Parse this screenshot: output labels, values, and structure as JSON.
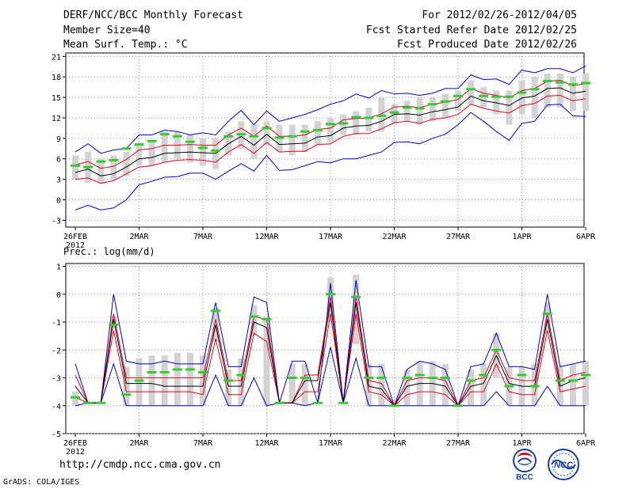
{
  "header": {
    "title": "DERF/NCC/BCC Monthly Forecast",
    "member_size": "Member Size=40",
    "variable": "Mean Surf. Temp.: °C",
    "for_period": "For 2012/02/26-2012/04/05",
    "started_refer": "Fcst Started Refer Date 2012/02/25",
    "produced": "Fcst Produced Date 2012/02/26"
  },
  "footer": {
    "url": "http://cmdp.ncc.cma.gov.cn",
    "grads": "GrADS: COLA/IGES",
    "logo_bcc_text": "BCC",
    "logo_ncc_text": "NCC"
  },
  "colors": {
    "ensemble_box": "#d2d2d2",
    "mean_line": "#000000",
    "std_lines": "#e3001b",
    "extreme_lines": "#0000cc",
    "median_marker": "#33cc33",
    "grid": "#888888"
  },
  "chart_data": [
    {
      "type": "line",
      "title": "Mean Surf. Temp.: °C",
      "ylabel": "",
      "ylim": [
        -4,
        21.5
      ],
      "yticks": [
        -3,
        0,
        3,
        6,
        9,
        12,
        15,
        18,
        21
      ],
      "xticks": [
        {
          "day": 0,
          "label": "26FEB",
          "sublabel": "2012"
        },
        {
          "day": 5,
          "label": "2MAR"
        },
        {
          "day": 10,
          "label": "7MAR"
        },
        {
          "day": 15,
          "label": "12MAR"
        },
        {
          "day": 20,
          "label": "17MAR"
        },
        {
          "day": 25,
          "label": "22MAR"
        },
        {
          "day": 30,
          "label": "27MAR"
        },
        {
          "day": 35,
          "label": "1APR"
        },
        {
          "day": 40,
          "label": "6APR"
        }
      ],
      "series": {
        "mean": [
          4.0,
          4.5,
          3.5,
          3.8,
          4.8,
          6.0,
          6.2,
          6.8,
          6.9,
          7.0,
          6.9,
          6.8,
          8.2,
          9.3,
          8.0,
          9.6,
          8.1,
          8.2,
          8.3,
          9.2,
          9.4,
          10.5,
          10.8,
          10.9,
          11.5,
          12.5,
          12.6,
          12.4,
          12.9,
          13.2,
          13.6,
          15.2,
          14.5,
          14.2,
          13.8,
          14.9,
          15.2,
          16.3,
          16.4,
          15.6,
          15.9
        ],
        "upper_std": [
          5.1,
          5.6,
          4.6,
          4.9,
          5.9,
          7.3,
          7.5,
          8.0,
          8.0,
          8.1,
          8.0,
          8.0,
          9.5,
          10.5,
          9.3,
          10.8,
          9.3,
          9.3,
          9.5,
          10.3,
          10.5,
          11.7,
          11.9,
          12.0,
          12.6,
          13.6,
          13.7,
          13.5,
          14.0,
          14.3,
          14.7,
          16.3,
          15.6,
          15.3,
          14.9,
          16.0,
          16.3,
          17.4,
          17.5,
          16.7,
          17.0
        ],
        "lower_std": [
          3.0,
          3.2,
          2.4,
          2.8,
          3.8,
          4.8,
          5.0,
          5.5,
          5.8,
          5.9,
          5.8,
          5.5,
          7.0,
          8.1,
          6.8,
          8.4,
          7.0,
          7.1,
          7.1,
          8.1,
          8.2,
          9.3,
          9.7,
          9.7,
          10.4,
          11.3,
          11.5,
          11.2,
          11.8,
          12.0,
          12.5,
          14.0,
          13.4,
          13.0,
          12.7,
          13.8,
          14.1,
          15.2,
          15.3,
          14.5,
          14.8
        ],
        "max": [
          7.0,
          8.2,
          6.8,
          7.3,
          7.5,
          9.5,
          9.5,
          10.2,
          10.0,
          9.5,
          9.8,
          9.5,
          11.5,
          13.1,
          11.0,
          13.0,
          11.5,
          12.0,
          12.5,
          13.2,
          14.0,
          14.5,
          15.5,
          14.9,
          16.0,
          15.5,
          15.6,
          15.3,
          15.6,
          16.3,
          16.3,
          18.3,
          17.6,
          17.7,
          16.9,
          19.0,
          18.6,
          19.2,
          19.2,
          18.6,
          19.6
        ],
        "min": [
          -1.5,
          -0.8,
          -1.5,
          -1.2,
          0.0,
          2.2,
          2.7,
          3.3,
          3.4,
          3.9,
          3.9,
          3.0,
          4.2,
          5.3,
          4.2,
          6.5,
          4.3,
          4.4,
          5.0,
          5.6,
          5.4,
          6.0,
          6.0,
          6.5,
          7.0,
          8.4,
          8.5,
          8.2,
          9.0,
          9.6,
          11.0,
          12.8,
          11.5,
          10.0,
          8.7,
          11.2,
          11.5,
          13.9,
          14.0,
          12.3,
          12.2
        ],
        "box_top": [
          6.5,
          7.0,
          6.0,
          6.5,
          7.0,
          8.0,
          8.5,
          10.0,
          10.0,
          9.5,
          9.0,
          9.0,
          10.0,
          11.5,
          11.0,
          11.5,
          11.0,
          11.0,
          11.0,
          11.5,
          12.0,
          12.5,
          13.0,
          13.5,
          15.0,
          14.0,
          14.5,
          15.0,
          15.0,
          15.5,
          16.0,
          17.5,
          16.5,
          16.0,
          16.0,
          17.5,
          18.0,
          18.5,
          18.5,
          18.0,
          18.5
        ],
        "box_bottom": [
          3.0,
          2.5,
          2.5,
          3.0,
          3.5,
          5.0,
          5.0,
          5.5,
          6.0,
          5.5,
          5.0,
          4.5,
          6.5,
          7.5,
          6.0,
          8.0,
          7.0,
          6.5,
          7.0,
          8.0,
          8.5,
          9.5,
          9.5,
          10.0,
          10.0,
          11.0,
          11.5,
          11.0,
          11.5,
          12.0,
          13.0,
          14.0,
          13.5,
          12.5,
          11.0,
          12.5,
          12.0,
          13.5,
          13.5,
          13.0,
          13.0
        ],
        "median": [
          5.0,
          4.8,
          5.6,
          5.8,
          7.5,
          8.1,
          8.6,
          9.6,
          9.3,
          8.5,
          7.6,
          7.2,
          9.3,
          9.6,
          9.3,
          10.5,
          9.1,
          9.3,
          10.0,
          10.2,
          11.1,
          11.2,
          12.1,
          12.0,
          12.3,
          12.8,
          13.5,
          13.4,
          14.0,
          14.4,
          15.2,
          16.2,
          15.2,
          15.1,
          15.1,
          15.7,
          16.2,
          17.4,
          17.2,
          16.9,
          17.1
        ]
      }
    },
    {
      "type": "line",
      "title": "Prec.: log(mm/d)",
      "ylabel": "",
      "ylim": [
        -5,
        1.1
      ],
      "yticks": [
        -5,
        -4,
        -3,
        -2,
        -1,
        0,
        1
      ],
      "xticks": [
        {
          "day": 0,
          "label": "26FEB",
          "sublabel": "2012"
        },
        {
          "day": 5,
          "label": "2MAR"
        },
        {
          "day": 10,
          "label": "7MAR"
        },
        {
          "day": 15,
          "label": "12MAR"
        },
        {
          "day": 20,
          "label": "17MAR"
        },
        {
          "day": 25,
          "label": "22MAR"
        },
        {
          "day": 30,
          "label": "27MAR"
        },
        {
          "day": 35,
          "label": "1APR"
        },
        {
          "day": 40,
          "label": "6APR"
        }
      ],
      "series": {
        "mean": [
          -3.3,
          -3.9,
          -3.9,
          -0.9,
          -3.2,
          -3.2,
          -3.2,
          -3.3,
          -3.3,
          -3.3,
          -3.3,
          -1.1,
          -3.3,
          -3.3,
          -1.0,
          -1.2,
          -3.9,
          -3.9,
          -3.1,
          -3.1,
          -0.3,
          -3.9,
          -0.3,
          -3.3,
          -3.4,
          -4.0,
          -3.3,
          -3.2,
          -3.2,
          -3.3,
          -4.0,
          -3.3,
          -3.2,
          -2.2,
          -3.2,
          -3.3,
          -3.3,
          -0.9,
          -3.3,
          -3.1,
          -3.0
        ],
        "upper_std": [
          -2.9,
          -3.9,
          -3.9,
          -0.7,
          -3.0,
          -3.0,
          -3.0,
          -3.0,
          -3.0,
          -3.0,
          -3.0,
          -0.9,
          -3.1,
          -3.1,
          -0.8,
          -0.9,
          -3.9,
          -3.9,
          -2.9,
          -2.9,
          -0.1,
          -3.9,
          -0.1,
          -3.1,
          -3.2,
          -4.0,
          -3.1,
          -3.0,
          -3.0,
          -3.1,
          -4.0,
          -3.1,
          -3.0,
          -2.0,
          -3.0,
          -3.1,
          -3.1,
          -0.7,
          -3.1,
          -2.9,
          -2.8
        ],
        "lower_std": [
          -3.7,
          -3.9,
          -3.9,
          -1.3,
          -3.5,
          -3.5,
          -3.5,
          -3.5,
          -3.5,
          -3.5,
          -3.6,
          -1.6,
          -3.6,
          -3.6,
          -1.4,
          -1.7,
          -3.9,
          -3.9,
          -3.5,
          -3.5,
          -0.7,
          -3.9,
          -0.7,
          -3.5,
          -3.6,
          -4.0,
          -3.6,
          -3.5,
          -3.5,
          -3.6,
          -4.0,
          -3.5,
          -3.5,
          -2.5,
          -3.5,
          -3.6,
          -3.6,
          -1.3,
          -3.5,
          -3.4,
          -3.3
        ],
        "max": [
          -2.5,
          -3.9,
          -3.9,
          0.0,
          -2.4,
          -2.5,
          -2.5,
          -2.4,
          -2.5,
          -2.5,
          -2.5,
          -0.3,
          -2.6,
          -2.6,
          -0.1,
          -0.3,
          -3.9,
          -2.4,
          -2.4,
          -3.9,
          0.4,
          -3.9,
          0.5,
          -2.6,
          -2.6,
          -4.0,
          -2.7,
          -2.4,
          -2.5,
          -2.7,
          -4.0,
          -2.6,
          -2.5,
          -1.4,
          -2.6,
          -2.6,
          -2.7,
          0.0,
          -2.6,
          -2.5,
          -2.4
        ],
        "min": [
          -4.0,
          -3.9,
          -3.9,
          -2.5,
          -4.0,
          -4.0,
          -4.0,
          -4.0,
          -4.0,
          -4.0,
          -4.0,
          -2.9,
          -4.0,
          -4.0,
          -3.0,
          -4.0,
          -3.9,
          -3.9,
          -4.0,
          -3.9,
          -1.9,
          -3.9,
          -2.3,
          -4.0,
          -4.0,
          -4.0,
          -4.0,
          -4.0,
          -4.0,
          -4.0,
          -4.0,
          -4.0,
          -4.0,
          -3.5,
          -4.0,
          -4.0,
          -4.0,
          -3.3,
          -4.0,
          -4.0,
          -4.0
        ],
        "box_top": [
          -3.5,
          -3.9,
          -3.9,
          -0.8,
          -2.6,
          -2.3,
          -2.2,
          -2.2,
          -2.1,
          -2.1,
          -2.2,
          -0.5,
          -2.7,
          -2.3,
          -0.4,
          -0.8,
          -3.9,
          -2.5,
          -2.5,
          -3.9,
          0.6,
          -3.9,
          0.7,
          -2.5,
          -2.5,
          -4.0,
          -2.7,
          -2.4,
          -2.4,
          -2.5,
          -4.0,
          -2.7,
          -2.5,
          -1.4,
          -2.6,
          -2.6,
          -2.5,
          -0.3,
          -2.6,
          -2.5,
          -2.4
        ],
        "box_bottom": [
          -4.0,
          -3.9,
          -3.9,
          -1.2,
          -4.0,
          -4.0,
          -4.0,
          -4.0,
          -4.0,
          -4.0,
          -4.0,
          -1.7,
          -4.0,
          -4.0,
          -1.5,
          -4.0,
          -3.9,
          -3.9,
          -4.0,
          -3.9,
          -1.0,
          -3.9,
          -1.8,
          -4.0,
          -4.0,
          -4.0,
          -4.0,
          -4.0,
          -4.0,
          -4.0,
          -4.0,
          -4.0,
          -4.0,
          -3.0,
          -4.0,
          -4.0,
          -4.0,
          -1.4,
          -4.0,
          -4.0,
          -4.0
        ],
        "median": [
          -3.7,
          -3.9,
          -3.9,
          -1.1,
          -3.6,
          -3.1,
          -2.8,
          -2.8,
          -2.7,
          -2.7,
          -2.8,
          -0.6,
          -3.1,
          -2.9,
          -0.8,
          -0.9,
          -3.9,
          -3.0,
          -3.0,
          -3.9,
          0.0,
          -3.9,
          -0.1,
          -3.0,
          -3.0,
          -4.0,
          -3.0,
          -2.9,
          -3.0,
          -3.0,
          -4.0,
          -3.1,
          -2.9,
          -2.0,
          -3.3,
          -2.9,
          -3.3,
          -0.7,
          -3.1,
          -3.1,
          -2.9
        ]
      }
    }
  ]
}
